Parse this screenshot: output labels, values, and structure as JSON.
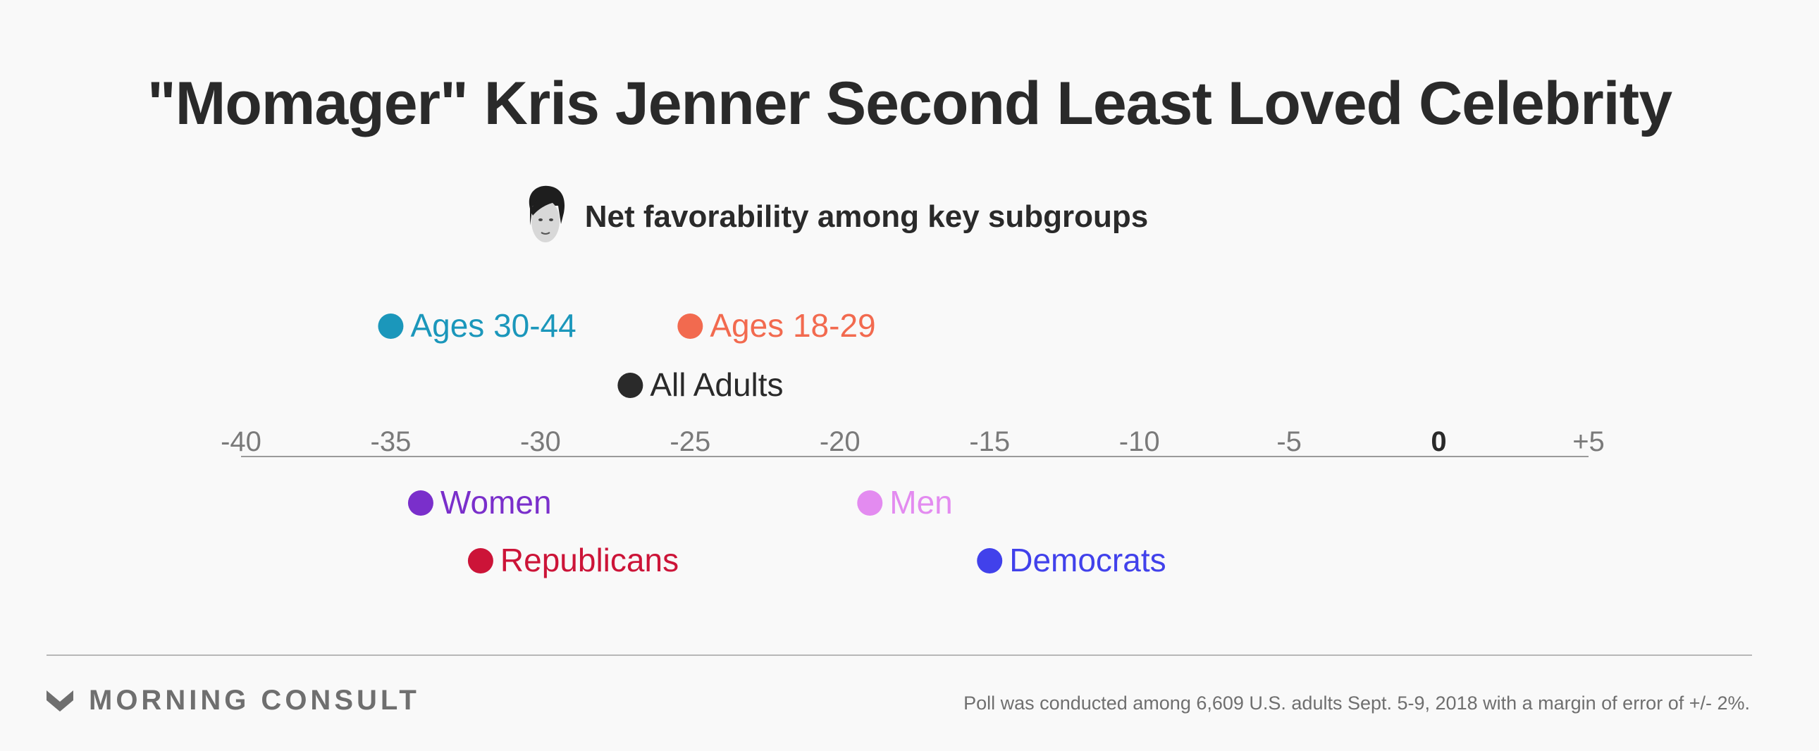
{
  "title": "\"Momager\" Kris Jenner Second Least Loved Celebrity",
  "subtitle": "Net favorability among key subgroups",
  "footer": {
    "brand": "MORNING CONSULT",
    "note": "Poll was conducted among 6,609 U.S. adults Sept. 5-9, 2018 with a margin of error of +/- 2%."
  },
  "chart_data": {
    "type": "scatter",
    "title": "\"Momager\" Kris Jenner Second Least Loved Celebrity",
    "subtitle": "Net favorability among key subgroups",
    "xlim": [
      -40,
      5
    ],
    "ticks": [
      {
        "value": -40,
        "label": "-40"
      },
      {
        "value": -35,
        "label": "-35"
      },
      {
        "value": -30,
        "label": "-30"
      },
      {
        "value": -25,
        "label": "-25"
      },
      {
        "value": -20,
        "label": "-20"
      },
      {
        "value": -15,
        "label": "-15"
      },
      {
        "value": -10,
        "label": "-10"
      },
      {
        "value": -5,
        "label": "-5"
      },
      {
        "value": 0,
        "label": "0",
        "bold": true
      },
      {
        "value": 5,
        "label": "+5"
      }
    ],
    "points": [
      {
        "name": "Ages 30-44",
        "value": -35,
        "color": "#1b97bb",
        "side": "above",
        "row": 1
      },
      {
        "name": "Ages 18-29",
        "value": -25,
        "color": "#f26a4f",
        "side": "above",
        "row": 1
      },
      {
        "name": "All Adults",
        "value": -27,
        "color": "#2a2a2a",
        "side": "above",
        "row": 2
      },
      {
        "name": "Women",
        "value": -34,
        "color": "#7a2fcb",
        "side": "below",
        "row": 1
      },
      {
        "name": "Men",
        "value": -19,
        "color": "#e38bf0",
        "side": "below",
        "row": 1
      },
      {
        "name": "Republicans",
        "value": -32,
        "color": "#cc1438",
        "side": "below",
        "row": 2
      },
      {
        "name": "Democrats",
        "value": -15,
        "color": "#4141eb",
        "side": "below",
        "row": 2
      }
    ]
  }
}
